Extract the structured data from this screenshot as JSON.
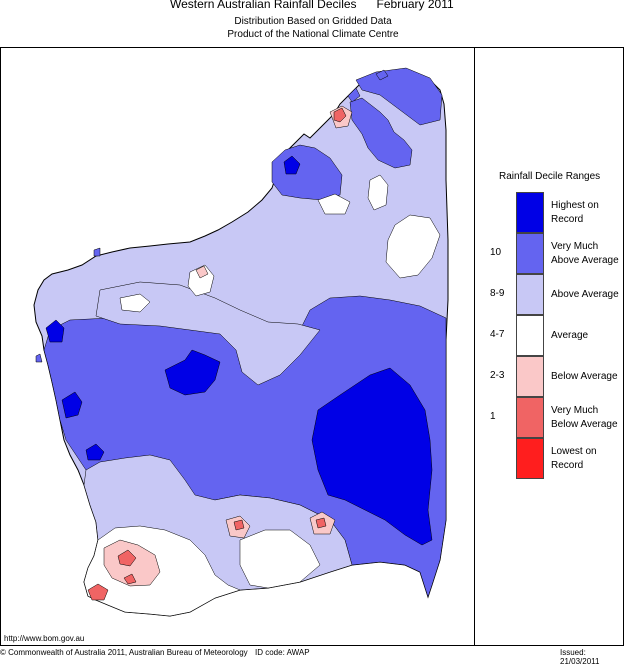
{
  "header": {
    "title": "Western Australian Rainfall Deciles      February 2011",
    "subtitle1": "Distribution Based on Gridded Data",
    "subtitle2": "Product of the National Climate Centre"
  },
  "legend": {
    "title": "Rainfall Decile Ranges",
    "items": [
      {
        "label": "Highest on Record",
        "range": "",
        "color": "#0000e6"
      },
      {
        "label": "Very Much Above Average",
        "range": "10",
        "color": "#6464f0"
      },
      {
        "label": "Above Average",
        "range": "8-9",
        "color": "#c8c8f5"
      },
      {
        "label": "Average",
        "range": "4-7",
        "color": "#ffffff"
      },
      {
        "label": "Below Average",
        "range": "2-3",
        "color": "#fac8c8"
      },
      {
        "label": "Very Much Below Average",
        "range": "1",
        "color": "#f06464"
      },
      {
        "label": "Lowest on Record",
        "range": "",
        "color": "#ff1e1e"
      }
    ]
  },
  "footer": {
    "url": "http://www.bom.gov.au",
    "copyright": "© Commonwealth of Australia 2011, Australian Bureau of Meteorology",
    "id_code": "ID code: AWAP",
    "issued": "Issued: 21/03/2011"
  }
}
